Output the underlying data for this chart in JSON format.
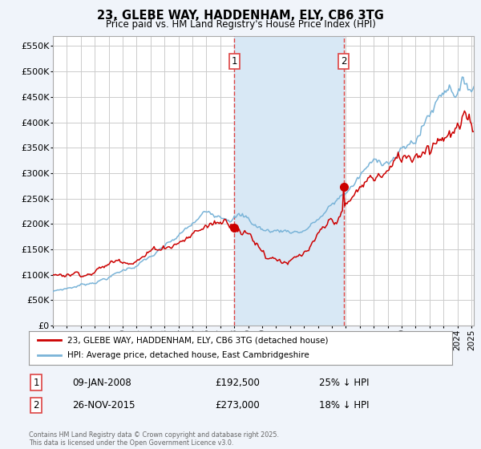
{
  "title": "23, GLEBE WAY, HADDENHAM, ELY, CB6 3TG",
  "subtitle": "Price paid vs. HM Land Registry's House Price Index (HPI)",
  "ylim": [
    0,
    570000
  ],
  "yticks": [
    0,
    50000,
    100000,
    150000,
    200000,
    250000,
    300000,
    350000,
    400000,
    450000,
    500000,
    550000
  ],
  "ytick_labels": [
    "£0",
    "£50K",
    "£100K",
    "£150K",
    "£200K",
    "£250K",
    "£300K",
    "£350K",
    "£400K",
    "£450K",
    "£500K",
    "£550K"
  ],
  "hpi_color": "#7ab4d8",
  "sale_color": "#cc0000",
  "vline_color": "#dd4444",
  "highlight_color": "#d8e8f5",
  "annotation1": {
    "label": "1",
    "date": "09-JAN-2008",
    "price": "£192,500",
    "pct": "25% ↓ HPI"
  },
  "annotation2": {
    "label": "2",
    "date": "26-NOV-2015",
    "price": "£273,000",
    "pct": "18% ↓ HPI"
  },
  "legend_sale": "23, GLEBE WAY, HADDENHAM, ELY, CB6 3TG (detached house)",
  "legend_hpi": "HPI: Average price, detached house, East Cambridgeshire",
  "footer": "Contains HM Land Registry data © Crown copyright and database right 2025.\nThis data is licensed under the Open Government Licence v3.0.",
  "background_color": "#f0f4fa",
  "plot_bg": "#ffffff",
  "grid_color": "#cccccc"
}
